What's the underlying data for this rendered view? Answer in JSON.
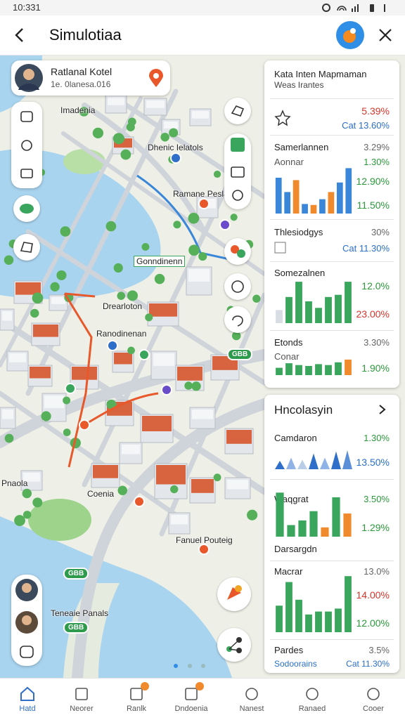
{
  "status_bar": {
    "time": "10:331"
  },
  "header": {
    "title": "Simulotiaa"
  },
  "map": {
    "place_card": {
      "name": "Ratlanal Kotel",
      "subtitle": "1e. 0lanesa.016"
    },
    "labels": [
      "Imadenia",
      "Dhenic Ielatols",
      "Ramane Peslaris",
      "Gonndinenn",
      "Drearloton",
      "Ranodinenan",
      "Pnaola",
      "Coenia",
      "Fanuel Pouteig",
      "Teneaie Panals"
    ],
    "badges": [
      "GBB",
      "GBB",
      "GBB"
    ]
  },
  "insights": {
    "title": "Kata Inten Mapmaman",
    "subtitle": "Weas Irantes",
    "rows": [
      {
        "value": "5.39%",
        "detail": "Cat 13.60%"
      },
      {
        "label": "Samerlannen",
        "value": "3.29%",
        "sublabel": "Aonnar",
        "subvalue": "1.30%",
        "chart": {
          "values": [
            75,
            45,
            70,
            20,
            18,
            30,
            45,
            65,
            95
          ],
          "colors": [
            "#3a86d8",
            "#3a86d8",
            "#f08a2c",
            "#3a86d8",
            "#f08a2c",
            "#3a86d8",
            "#f08a2c",
            "#3a86d8",
            "#3a86d8"
          ]
        },
        "chart_values": [
          "12.90%",
          "11.50%"
        ]
      },
      {
        "label": "Thlesiodgys",
        "value": "30%",
        "detail": "Cat 11.30%"
      },
      {
        "label": "Somezalnen",
        "chart": {
          "values": [
            30,
            60,
            95,
            50,
            35,
            60,
            65,
            95
          ],
          "colors": [
            "#d8dde3",
            "#3aa55c",
            "#3aa55c",
            "#3aa55c",
            "#3aa55c",
            "#3aa55c",
            "#3aa55c",
            "#3aa55c"
          ]
        },
        "chart_values": [
          "12.0%",
          "23.00%"
        ]
      },
      {
        "label": "Etonds",
        "value": "3.30%",
        "sublabel": "Conar",
        "chart": {
          "values": [
            40,
            65,
            55,
            50,
            60,
            55,
            70,
            85
          ],
          "colors": [
            "#3aa55c",
            "#3aa55c",
            "#3aa55c",
            "#3aa55c",
            "#3aa55c",
            "#3aa55c",
            "#3aa55c",
            "#f08a2c"
          ]
        },
        "chart_values": [
          "1.90%"
        ]
      }
    ]
  },
  "details": {
    "title": "Hncolasyin",
    "rows": [
      {
        "label": "Camdaron",
        "value": "1.30%",
        "chart": {
          "type": "triangle",
          "values": [
            40,
            55,
            45,
            75,
            55,
            85,
            90
          ],
          "colors": [
            "#2f6fc9",
            "#8fb3e6",
            "#b9cde8",
            "#2f6fc9",
            "#8fb3e6",
            "#2f6fc9",
            "#5b8fd8"
          ]
        },
        "chart_values": [
          "13.50%"
        ]
      },
      {
        "label": "Waqgrat",
        "value": "3.50%",
        "chart": {
          "values": [
            95,
            25,
            35,
            55,
            20,
            85,
            50
          ],
          "colors": [
            "#3aa55c",
            "#3aa55c",
            "#3aa55c",
            "#3aa55c",
            "#f08a2c",
            "#3aa55c",
            "#f08a2c"
          ]
        },
        "chart_values": [
          "1.29%"
        ]
      },
      {
        "label": "Darsargdn"
      },
      {
        "label": "Macrar",
        "value": "13.0%",
        "chart": {
          "values": [
            45,
            85,
            55,
            30,
            35,
            35,
            40,
            95
          ],
          "colors": [
            "#3aa55c",
            "#3aa55c",
            "#3aa55c",
            "#3aa55c",
            "#3aa55c",
            "#3aa55c",
            "#3aa55c",
            "#3aa55c"
          ]
        },
        "chart_values": [
          "14.00%",
          "12.00%"
        ]
      },
      {
        "label": "Pardes",
        "value": "3.5%",
        "sublabel": "Sodoorains",
        "detail": "Cat 11.30%"
      }
    ]
  },
  "nav": [
    "Hatd",
    "Neorer",
    "Ranlk",
    "Dndoenia",
    "Nanest",
    "Ranaed",
    "Cooer"
  ]
}
